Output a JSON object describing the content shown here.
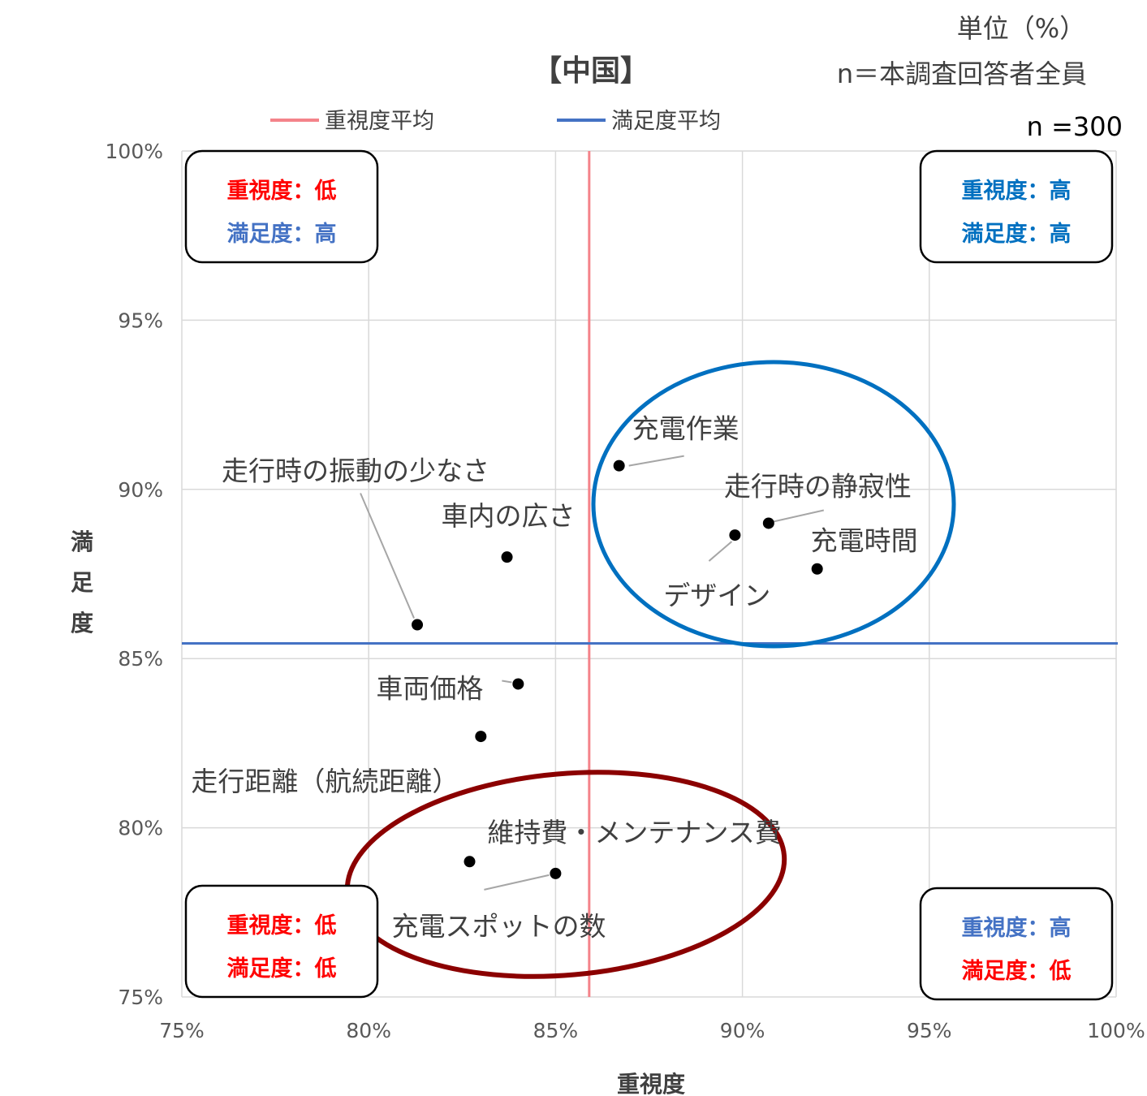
{
  "colors": {
    "importance_avg": "#f4838a",
    "satisfaction_avg": "#4472c4",
    "red": "#ff0000",
    "blue": "#0070c0",
    "blue_light": "#4472c4",
    "ellipse_blue": "#0070c0",
    "ellipse_red": "#8b0000",
    "grid": "#d9d9d9"
  },
  "chart_data": {
    "type": "scatter",
    "title": "【中国】",
    "unit_note": "単位（%）",
    "n_note": "n＝本調査回答者全員",
    "n_value": "n =300",
    "xlabel": "重視度",
    "ylabel": "満足度",
    "xlim": [
      75,
      100
    ],
    "ylim": [
      75,
      100
    ],
    "x_ticks": [
      "75%",
      "80%",
      "85%",
      "90%",
      "95%",
      "100%"
    ],
    "y_ticks": [
      "75%",
      "80%",
      "85%",
      "90%",
      "95%",
      "100%"
    ],
    "grid": true,
    "legend": {
      "placement": "top",
      "items": [
        {
          "name": "重視度平均",
          "color": "#f4838a"
        },
        {
          "name": "満足度平均",
          "color": "#4472c4"
        }
      ]
    },
    "reference_lines": {
      "importance_avg": 85.9,
      "satisfaction_avg": 85.45
    },
    "points": [
      {
        "label": "充電作業",
        "x": 86.7,
        "y": 90.7
      },
      {
        "label": "走行時の静寂性",
        "x": 90.7,
        "y": 89.0
      },
      {
        "label": "デザイン",
        "x": 89.8,
        "y": 88.65
      },
      {
        "label": "充電時間",
        "x": 92.0,
        "y": 87.65
      },
      {
        "label": "車内の広さ",
        "x": 83.7,
        "y": 88.0
      },
      {
        "label": "走行時の振動の少なさ",
        "x": 81.3,
        "y": 86.0
      },
      {
        "label": "車両価格",
        "x": 84.0,
        "y": 84.25
      },
      {
        "label": "走行距離（航続距離）",
        "x": 83.0,
        "y": 82.7
      },
      {
        "label": "維持費・メンテナンス費",
        "x": 85.0,
        "y": 78.65
      },
      {
        "label": "充電スポットの数",
        "x": 82.7,
        "y": 79.0
      }
    ],
    "quadrants": {
      "top_left": {
        "line1": "重視度：低",
        "line2": "満足度：高"
      },
      "top_right": {
        "line1": "重視度：高",
        "line2": "満足度：高"
      },
      "bottom_left": {
        "line1": "重視度：低",
        "line2": "満足度：低"
      },
      "bottom_right": {
        "line1": "重視度：高",
        "line2": "満足度：低"
      }
    }
  }
}
